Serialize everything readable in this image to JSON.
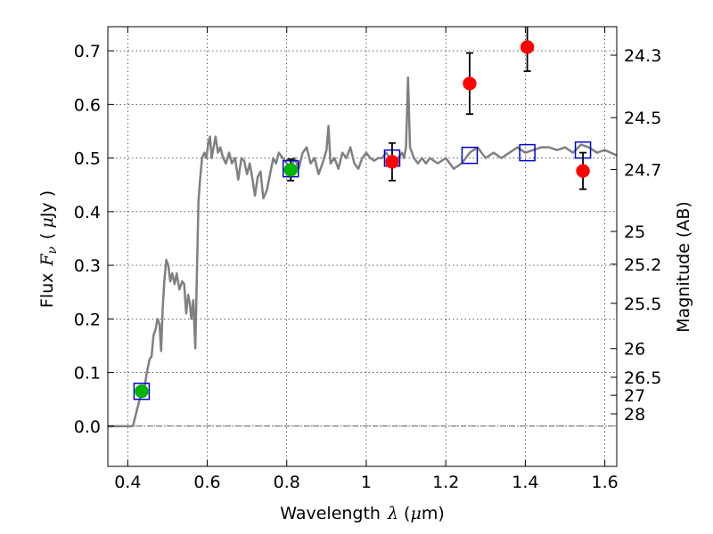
{
  "chart_data": {
    "type": "scatter",
    "xlabel": {
      "prefix": "Wavelength",
      "symbol": "λ",
      "unit_open": "(",
      "unit_sym": "μ",
      "unit_close": "m)"
    },
    "ylabel": {
      "prefix": "Flux",
      "symbol": "F",
      "subscript": "ν",
      "unit_open": "(",
      "unit_sym": "μ",
      "unit_close": "Jy )"
    },
    "y2label": "Magnitude (AB)",
    "xlim": [
      0.35,
      1.63
    ],
    "ylim": [
      -0.075,
      0.745
    ],
    "xticks": [
      {
        "value": 0.4,
        "label": "0.4"
      },
      {
        "value": 0.6,
        "label": "0.6"
      },
      {
        "value": 0.8,
        "label": "0.8"
      },
      {
        "value": 1.0,
        "label": "1"
      },
      {
        "value": 1.2,
        "label": "1.2"
      },
      {
        "value": 1.4,
        "label": "1.4"
      },
      {
        "value": 1.6,
        "label": "1.6"
      }
    ],
    "yticks": [
      {
        "value": 0.0,
        "label": "0.0"
      },
      {
        "value": 0.1,
        "label": "0.1"
      },
      {
        "value": 0.2,
        "label": "0.2"
      },
      {
        "value": 0.3,
        "label": "0.3"
      },
      {
        "value": 0.4,
        "label": "0.4"
      },
      {
        "value": 0.5,
        "label": "0.5"
      },
      {
        "value": 0.6,
        "label": "0.6"
      },
      {
        "value": 0.7,
        "label": "0.7"
      }
    ],
    "y2ticks": [
      {
        "value": 24.3,
        "label": "24.3"
      },
      {
        "value": 24.5,
        "label": "24.5"
      },
      {
        "value": 24.7,
        "label": "24.7"
      },
      {
        "value": 25.0,
        "label": "25"
      },
      {
        "value": 25.2,
        "label": "25.2"
      },
      {
        "value": 25.5,
        "label": "25.5"
      },
      {
        "value": 26.0,
        "label": "26"
      },
      {
        "value": 26.5,
        "label": "26.5"
      },
      {
        "value": 27.0,
        "label": "27"
      },
      {
        "value": 28.0,
        "label": "28"
      }
    ],
    "grid": true,
    "colors": {
      "model_line": "#808080",
      "detected_points": "#ff0000",
      "green_points": "#00b400",
      "model_squares": "#0000cc",
      "error_bars": "#000000",
      "zero_line": "#000000"
    },
    "series": [
      {
        "kind": "line",
        "points": [
          [
            0.35,
            0.0
          ],
          [
            0.39,
            0.0
          ],
          [
            0.413,
            0.0
          ],
          [
            0.43,
            0.05
          ],
          [
            0.443,
            0.075
          ],
          [
            0.448,
            0.1
          ],
          [
            0.455,
            0.125
          ],
          [
            0.46,
            0.13
          ],
          [
            0.465,
            0.17
          ],
          [
            0.47,
            0.18
          ],
          [
            0.475,
            0.2
          ],
          [
            0.48,
            0.19
          ],
          [
            0.484,
            0.14
          ],
          [
            0.488,
            0.22
          ],
          [
            0.492,
            0.27
          ],
          [
            0.497,
            0.31
          ],
          [
            0.502,
            0.3
          ],
          [
            0.507,
            0.27
          ],
          [
            0.512,
            0.285
          ],
          [
            0.518,
            0.265
          ],
          [
            0.523,
            0.285
          ],
          [
            0.53,
            0.255
          ],
          [
            0.537,
            0.27
          ],
          [
            0.542,
            0.265
          ],
          [
            0.547,
            0.21
          ],
          [
            0.552,
            0.245
          ],
          [
            0.556,
            0.23
          ],
          [
            0.56,
            0.2
          ],
          [
            0.565,
            0.235
          ],
          [
            0.57,
            0.145
          ],
          [
            0.573,
            0.25
          ],
          [
            0.578,
            0.42
          ],
          [
            0.582,
            0.46
          ],
          [
            0.587,
            0.5
          ],
          [
            0.593,
            0.51
          ],
          [
            0.598,
            0.5
          ],
          [
            0.603,
            0.53
          ],
          [
            0.607,
            0.54
          ],
          [
            0.611,
            0.5
          ],
          [
            0.616,
            0.52
          ],
          [
            0.621,
            0.54
          ],
          [
            0.627,
            0.51
          ],
          [
            0.633,
            0.52
          ],
          [
            0.64,
            0.5
          ],
          [
            0.647,
            0.49
          ],
          [
            0.655,
            0.51
          ],
          [
            0.662,
            0.49
          ],
          [
            0.67,
            0.5
          ],
          [
            0.678,
            0.46
          ],
          [
            0.686,
            0.5
          ],
          [
            0.693,
            0.495
          ],
          [
            0.7,
            0.47
          ],
          [
            0.707,
            0.49
          ],
          [
            0.714,
            0.46
          ],
          [
            0.72,
            0.43
          ],
          [
            0.727,
            0.465
          ],
          [
            0.734,
            0.475
          ],
          [
            0.741,
            0.425
          ],
          [
            0.75,
            0.44
          ],
          [
            0.758,
            0.47
          ],
          [
            0.766,
            0.5
          ],
          [
            0.773,
            0.49
          ],
          [
            0.78,
            0.51
          ],
          [
            0.79,
            0.5
          ],
          [
            0.8,
            0.49
          ],
          [
            0.81,
            0.48
          ],
          [
            0.82,
            0.5
          ],
          [
            0.83,
            0.48
          ],
          [
            0.84,
            0.51
          ],
          [
            0.85,
            0.52
          ],
          [
            0.86,
            0.49
          ],
          [
            0.87,
            0.5
          ],
          [
            0.88,
            0.47
          ],
          [
            0.89,
            0.49
          ],
          [
            0.9,
            0.515
          ],
          [
            0.905,
            0.56
          ],
          [
            0.91,
            0.49
          ],
          [
            0.92,
            0.5
          ],
          [
            0.93,
            0.48
          ],
          [
            0.94,
            0.51
          ],
          [
            0.95,
            0.5
          ],
          [
            0.96,
            0.52
          ],
          [
            0.97,
            0.49
          ],
          [
            0.98,
            0.48
          ],
          [
            0.99,
            0.5
          ],
          [
            1.0,
            0.51
          ],
          [
            1.01,
            0.5
          ],
          [
            1.02,
            0.495
          ],
          [
            1.03,
            0.5
          ],
          [
            1.04,
            0.5
          ],
          [
            1.05,
            0.51
          ],
          [
            1.06,
            0.5
          ],
          [
            1.07,
            0.49
          ],
          [
            1.08,
            0.5
          ],
          [
            1.09,
            0.51
          ],
          [
            1.095,
            0.5
          ],
          [
            1.1,
            0.52
          ],
          [
            1.105,
            0.65
          ],
          [
            1.11,
            0.52
          ],
          [
            1.12,
            0.5
          ],
          [
            1.13,
            0.49
          ],
          [
            1.14,
            0.5
          ],
          [
            1.15,
            0.49
          ],
          [
            1.16,
            0.5
          ],
          [
            1.18,
            0.49
          ],
          [
            1.2,
            0.5
          ],
          [
            1.22,
            0.48
          ],
          [
            1.24,
            0.49
          ],
          [
            1.26,
            0.51
          ],
          [
            1.28,
            0.52
          ],
          [
            1.3,
            0.5
          ],
          [
            1.32,
            0.51
          ],
          [
            1.34,
            0.5
          ],
          [
            1.36,
            0.51
          ],
          [
            1.38,
            0.52
          ],
          [
            1.4,
            0.51
          ],
          [
            1.42,
            0.515
          ],
          [
            1.44,
            0.52
          ],
          [
            1.46,
            0.52
          ],
          [
            1.48,
            0.515
          ],
          [
            1.5,
            0.52
          ],
          [
            1.52,
            0.51
          ],
          [
            1.54,
            0.525
          ],
          [
            1.56,
            0.52
          ],
          [
            1.58,
            0.51
          ],
          [
            1.6,
            0.515
          ],
          [
            1.63,
            0.505
          ]
        ]
      },
      {
        "kind": "squares",
        "points": [
          [
            0.435,
            0.065
          ],
          [
            0.81,
            0.48
          ],
          [
            1.065,
            0.5
          ],
          [
            1.26,
            0.505
          ],
          [
            1.405,
            0.51
          ],
          [
            1.545,
            0.515
          ]
        ]
      },
      {
        "kind": "points",
        "color_key": "green_points",
        "points": [
          {
            "x": 0.435,
            "y": 0.065,
            "err": 0.0
          },
          {
            "x": 0.81,
            "y": 0.478,
            "err": 0.02
          }
        ]
      },
      {
        "kind": "points",
        "color_key": "detected_points",
        "points": [
          {
            "x": 1.065,
            "y": 0.493,
            "err": 0.035
          },
          {
            "x": 1.26,
            "y": 0.639,
            "err": 0.057
          },
          {
            "x": 1.405,
            "y": 0.707,
            "err": 0.045
          },
          {
            "x": 1.545,
            "y": 0.476,
            "err": 0.034
          }
        ]
      }
    ]
  }
}
